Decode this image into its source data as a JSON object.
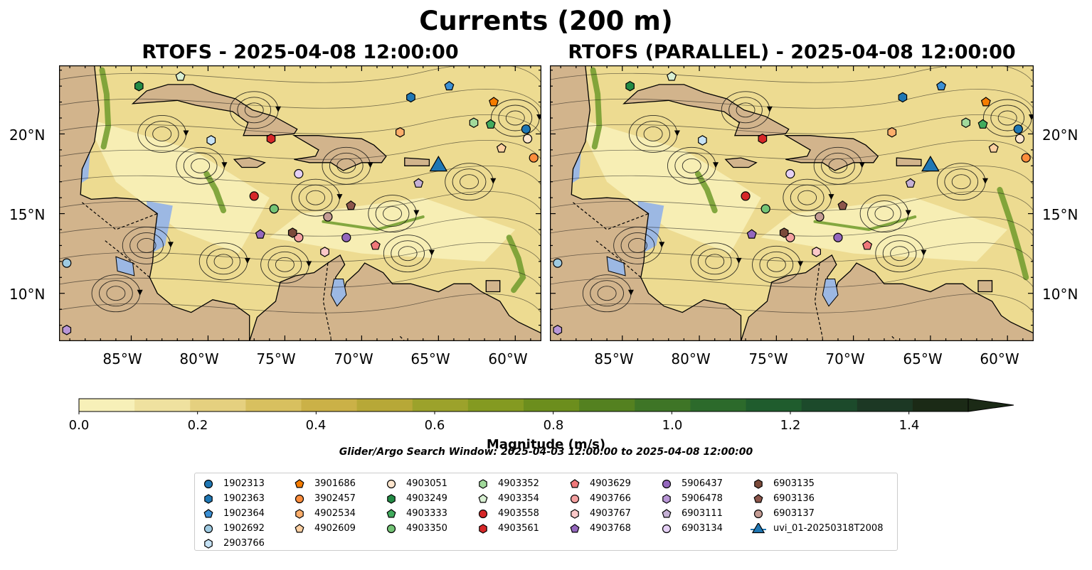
{
  "figure": {
    "suptitle": "Currents (200 m)",
    "panels": [
      {
        "title": "RTOFS - 2025-04-08 12:00:00"
      },
      {
        "title": "RTOFS (PARALLEL) - 2025-04-08 12:00:00"
      }
    ],
    "lat_labels": [
      "20°N",
      "15°N",
      "10°N"
    ],
    "lon_labels": [
      "85°W",
      "80°W",
      "75°W",
      "70°W",
      "65°W",
      "60°W"
    ],
    "extent": {
      "lon_min": -89.7,
      "lon_max": -58.3,
      "lat_min": 7.0,
      "lat_max": 24.3
    },
    "colors": {
      "land": "#d2b48c",
      "ocean": "#9cb8e3",
      "low": "#f7f0b8",
      "high": "#1b2a16"
    }
  },
  "colorbar": {
    "label": "Magnitude (m/s)",
    "ticks": [
      "0.0",
      "0.2",
      "0.4",
      "0.6",
      "0.8",
      "1.0",
      "1.2",
      "1.4"
    ],
    "tick_values": [
      0.0,
      0.2,
      0.4,
      0.6,
      0.8,
      1.0,
      1.2,
      1.4
    ],
    "max": 1.5,
    "colors": [
      "#f7f0b8",
      "#efe19f",
      "#e5d07f",
      "#d8c05f",
      "#cbb147",
      "#b7a837",
      "#9ca22b",
      "#849a21",
      "#6c8e1d",
      "#548120",
      "#3e7526",
      "#2c6a2b",
      "#1f5c2d",
      "#1c4a2b",
      "#1c3824",
      "#1b2a16"
    ]
  },
  "search_window": "Glider/Argo Search Window: 2025-04-03 12:00:00 to 2025-04-08 12:00:00",
  "legend": [
    {
      "id": "1902313",
      "color": "#1f77b4",
      "shape": "circle",
      "lon": -59.3,
      "lat": 20.3
    },
    {
      "id": "1902363",
      "color": "#1f77b4",
      "shape": "hexagon",
      "lon": -66.8,
      "lat": 22.3
    },
    {
      "id": "1902364",
      "color": "#3b8fd4",
      "shape": "pentagon",
      "lon": -64.3,
      "lat": 23.0
    },
    {
      "id": "1902692",
      "color": "#9ecae1",
      "shape": "circle",
      "lon": -89.2,
      "lat": 11.9
    },
    {
      "id": "2903766",
      "color": "#c6e2f5",
      "shape": "hexagon",
      "lon": -79.8,
      "lat": 19.6
    },
    {
      "id": "3901686",
      "color": "#f57c00",
      "shape": "pentagon",
      "lon": -61.4,
      "lat": 22.0
    },
    {
      "id": "3902457",
      "color": "#fd8d3c",
      "shape": "circle",
      "lon": -58.8,
      "lat": 18.5
    },
    {
      "id": "4902534",
      "color": "#fdae6b",
      "shape": "hexagon",
      "lon": -67.5,
      "lat": 20.1
    },
    {
      "id": "4902609",
      "color": "#fdd0a2",
      "shape": "pentagon",
      "lon": -60.9,
      "lat": 19.1
    },
    {
      "id": "4903051",
      "color": "#fee6ce",
      "shape": "circle",
      "lon": -59.2,
      "lat": 19.7
    },
    {
      "id": "4903249",
      "color": "#238b45",
      "shape": "hexagon",
      "lon": -84.5,
      "lat": 23.0
    },
    {
      "id": "4903333",
      "color": "#41ab5d",
      "shape": "pentagon",
      "lon": -61.6,
      "lat": 20.6
    },
    {
      "id": "4903350",
      "color": "#74c476",
      "shape": "circle",
      "lon": -75.7,
      "lat": 15.3
    },
    {
      "id": "4903352",
      "color": "#a1d99b",
      "shape": "hexagon",
      "lon": -62.7,
      "lat": 20.7
    },
    {
      "id": "4903354",
      "color": "#d9f0d3",
      "shape": "pentagon",
      "lon": -81.8,
      "lat": 23.6
    },
    {
      "id": "4903558",
      "color": "#d62728",
      "shape": "circle",
      "lon": -77.0,
      "lat": 16.1
    },
    {
      "id": "4903561",
      "color": "#d62728",
      "shape": "hexagon",
      "lon": -75.9,
      "lat": 19.7
    },
    {
      "id": "4903629",
      "color": "#f0787a",
      "shape": "pentagon",
      "lon": -69.1,
      "lat": 13.0
    },
    {
      "id": "4903766",
      "color": "#f4a0a0",
      "shape": "circle",
      "lon": -74.1,
      "lat": 13.5
    },
    {
      "id": "4903767",
      "color": "#fbc8c8",
      "shape": "hexagon",
      "lon": -72.4,
      "lat": 12.6
    },
    {
      "id": "4903768",
      "color": "#9467bd",
      "shape": "pentagon",
      "lon": -76.6,
      "lat": 13.7
    },
    {
      "id": "5906437",
      "color": "#9467bd",
      "shape": "circle",
      "lon": -71.0,
      "lat": 13.5
    },
    {
      "id": "5906478",
      "color": "#b896d6",
      "shape": "hexagon",
      "lon": -89.2,
      "lat": 7.7
    },
    {
      "id": "6903111",
      "color": "#c5b0d5",
      "shape": "pentagon",
      "lon": -66.3,
      "lat": 16.9
    },
    {
      "id": "6903134",
      "color": "#e5d0f5",
      "shape": "circle",
      "lon": -74.1,
      "lat": 17.5
    },
    {
      "id": "6903135",
      "color": "#7b4a3a",
      "shape": "hexagon",
      "lon": -74.5,
      "lat": 13.8
    },
    {
      "id": "6903136",
      "color": "#8c564b",
      "shape": "pentagon",
      "lon": -70.7,
      "lat": 15.5
    },
    {
      "id": "6903137",
      "color": "#c49c94",
      "shape": "circle",
      "lon": -72.2,
      "lat": 14.8
    },
    {
      "id": "uvi_01-20250318T2008",
      "color": "#1f77b4",
      "shape": "triangle",
      "lon": -65.0,
      "lat": 18.1
    }
  ]
}
